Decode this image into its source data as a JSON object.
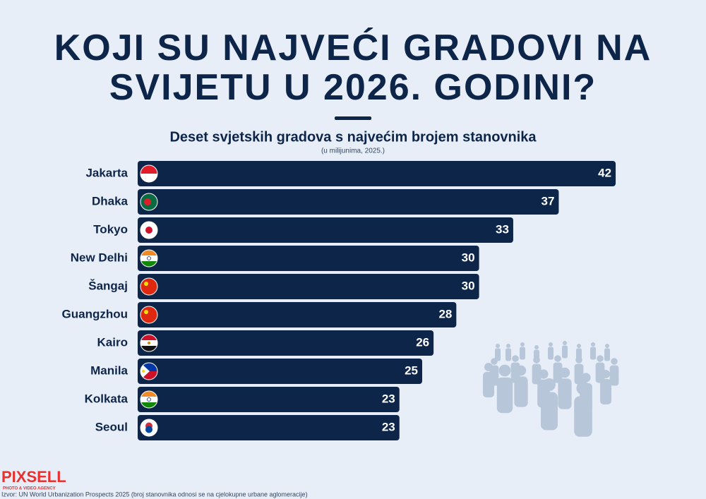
{
  "chart_data": {
    "type": "bar",
    "title": "KOJI SU NAJVEĆI GRADOVI NA SVIJETU U 2026. GODINI?",
    "subtitle": "Deset svjetskih gradova s najvećim brojem stanovnika",
    "note": "(u milijunima, 2025.)",
    "categories": [
      "Jakarta",
      "Dhaka",
      "Tokyo",
      "New Delhi",
      "Šangaj",
      "Guangzhou",
      "Kairo",
      "Manila",
      "Kolkata",
      "Seoul"
    ],
    "values": [
      42,
      37,
      33,
      30,
      30,
      28,
      26,
      25,
      23,
      23
    ],
    "color": "#0d2549",
    "source": "Izvor: UN World Urbanization Prospects 2025 (broj stanovnika odnosi se na cjelokupne urbane aglomeracije)",
    "logo": "PIXSELL",
    "logo_tagline": "PHOTO & VIDEO AGENCY"
  }
}
